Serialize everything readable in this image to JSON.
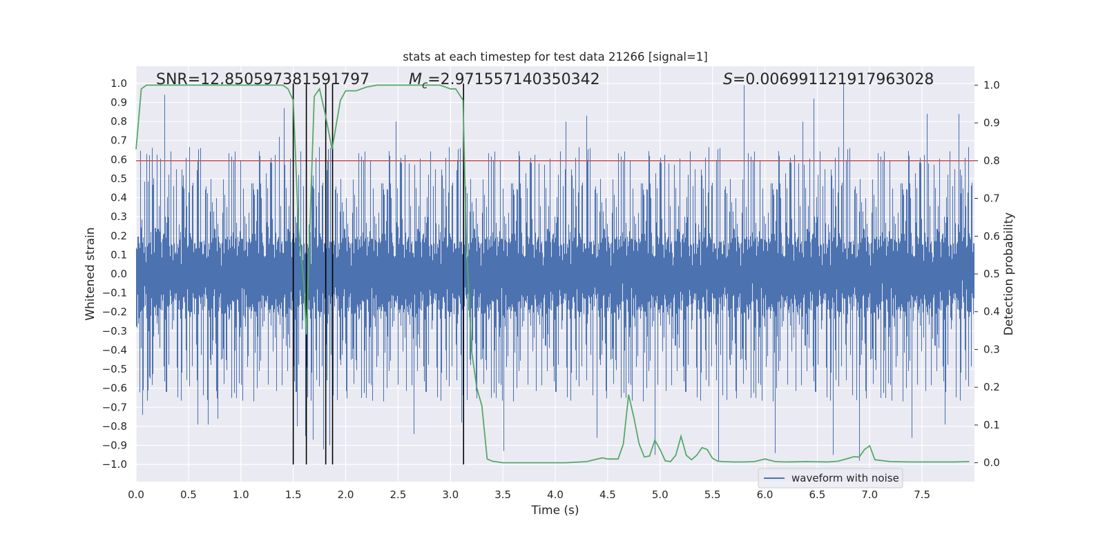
{
  "chart_data": {
    "type": "line",
    "title": "stats at each timestep for test data 21266 [signal=1]",
    "xlabel": "Time (s)",
    "ylabel_left": "Whitened strain",
    "ylabel_right": "Detection probability",
    "xlim": [
      0.0,
      8.0
    ],
    "ylim_left": [
      -1.09,
      1.09
    ],
    "ylim_right": [
      -0.05,
      1.05
    ],
    "xticks": [
      "0.0",
      "0.5",
      "1.0",
      "1.5",
      "2.0",
      "2.5",
      "3.0",
      "3.5",
      "4.0",
      "4.5",
      "5.0",
      "5.5",
      "6.0",
      "6.5",
      "7.0",
      "7.5"
    ],
    "yticks_left": [
      "1.0",
      "0.9",
      "0.8",
      "0.7",
      "0.6",
      "0.5",
      "0.4",
      "0.3",
      "0.2",
      "0.1",
      "0.0",
      "−0.1",
      "−0.2",
      "−0.3",
      "−0.4",
      "−0.5",
      "−0.6",
      "−0.7",
      "−0.8",
      "−0.9",
      "−1.0"
    ],
    "yticks_right": [
      "1.0",
      "0.9",
      "0.8",
      "0.7",
      "0.6",
      "0.5",
      "0.4",
      "0.3",
      "0.2",
      "0.1",
      "0.0"
    ],
    "annotations": {
      "snr": "SNR=12.850597381591797",
      "mc_symbol": "M",
      "mc_sub": "c",
      "mc_value": "=2.971557140350342",
      "s_symbol": "S",
      "s_value": "=0.006991121917963028"
    },
    "threshold": {
      "value": 0.8,
      "color": "#c44e52"
    },
    "vlines_x": [
      1.5,
      1.625,
      1.81,
      1.875,
      3.125
    ],
    "series": [
      {
        "name": "waveform with noise",
        "axis": "left",
        "color": "#4c72b0",
        "sample_rate": 2048,
        "noise_envelope": 0.2,
        "peaks": [
          [
            0.06,
            -0.74
          ],
          [
            0.27,
            0.94
          ],
          [
            0.59,
            -0.79
          ],
          [
            0.69,
            -0.79
          ],
          [
            0.78,
            -0.76
          ],
          [
            1.37,
            0.72
          ],
          [
            1.41,
            0.87
          ],
          [
            1.54,
            -0.8
          ],
          [
            1.62,
            -0.85
          ],
          [
            1.69,
            -0.87
          ],
          [
            1.79,
            -0.92
          ],
          [
            1.85,
            -0.9
          ],
          [
            2.48,
            0.8
          ],
          [
            2.65,
            -0.84
          ],
          [
            3.11,
            -0.78
          ],
          [
            3.51,
            -0.93
          ],
          [
            4.1,
            0.8
          ],
          [
            4.3,
            0.83
          ],
          [
            4.4,
            -0.86
          ],
          [
            4.95,
            -0.95
          ],
          [
            5.56,
            -0.98
          ],
          [
            5.8,
            0.99
          ],
          [
            6.1,
            -0.94
          ],
          [
            6.36,
            0.8
          ],
          [
            6.47,
            0.92
          ],
          [
            6.65,
            -0.95
          ],
          [
            6.75,
            1.0
          ],
          [
            6.9,
            -0.98
          ],
          [
            7.4,
            -0.86
          ],
          [
            7.55,
            0.84
          ],
          [
            7.72,
            -0.79
          ],
          [
            7.85,
            0.84
          ]
        ]
      },
      {
        "name": "detection probability",
        "axis": "right",
        "color": "#55a868",
        "x": [
          0.0,
          0.05,
          0.1,
          0.2,
          0.4,
          0.6,
          0.8,
          1.0,
          1.2,
          1.4,
          1.45,
          1.5,
          1.55,
          1.6,
          1.625,
          1.65,
          1.7,
          1.75,
          1.8,
          1.87,
          1.95,
          2.0,
          2.1,
          2.2,
          2.3,
          2.5,
          2.7,
          2.9,
          3.0,
          3.05,
          3.12,
          3.15,
          3.2,
          3.25,
          3.3,
          3.35,
          3.4,
          3.5,
          3.7,
          3.9,
          4.1,
          4.3,
          4.4,
          4.45,
          4.5,
          4.6,
          4.65,
          4.7,
          4.75,
          4.8,
          4.85,
          4.9,
          4.95,
          5.0,
          5.05,
          5.1,
          5.15,
          5.2,
          5.25,
          5.3,
          5.35,
          5.4,
          5.45,
          5.5,
          5.55,
          5.6,
          5.7,
          5.8,
          5.9,
          6.0,
          6.1,
          6.2,
          6.4,
          6.6,
          6.7,
          6.8,
          6.85,
          6.9,
          6.95,
          7.0,
          7.05,
          7.2,
          7.4,
          7.6,
          7.8,
          7.95
        ],
        "y": [
          0.83,
          0.99,
          1.0,
          1.0,
          1.0,
          1.0,
          1.0,
          1.0,
          1.0,
          1.0,
          0.99,
          0.96,
          0.62,
          0.48,
          0.34,
          0.55,
          0.97,
          0.99,
          0.93,
          0.83,
          0.96,
          0.985,
          0.985,
          0.995,
          1.0,
          1.0,
          1.0,
          1.0,
          0.99,
          0.99,
          0.96,
          0.6,
          0.3,
          0.2,
          0.15,
          0.01,
          0.004,
          0.0,
          0.0,
          0.0,
          0.0,
          0.003,
          0.01,
          0.013,
          0.01,
          0.01,
          0.05,
          0.18,
          0.12,
          0.05,
          0.015,
          0.018,
          0.06,
          0.035,
          0.005,
          0.003,
          0.02,
          0.07,
          0.02,
          0.008,
          0.02,
          0.04,
          0.035,
          0.012,
          0.004,
          0.003,
          0.002,
          0.002,
          0.003,
          0.01,
          0.003,
          0.002,
          0.003,
          0.002,
          0.004,
          0.012,
          0.016,
          0.015,
          0.035,
          0.045,
          0.008,
          0.003,
          0.002,
          0.002,
          0.002,
          0.003
        ]
      }
    ],
    "legend": {
      "label": "waveform with noise",
      "placement": "lower-center"
    }
  }
}
